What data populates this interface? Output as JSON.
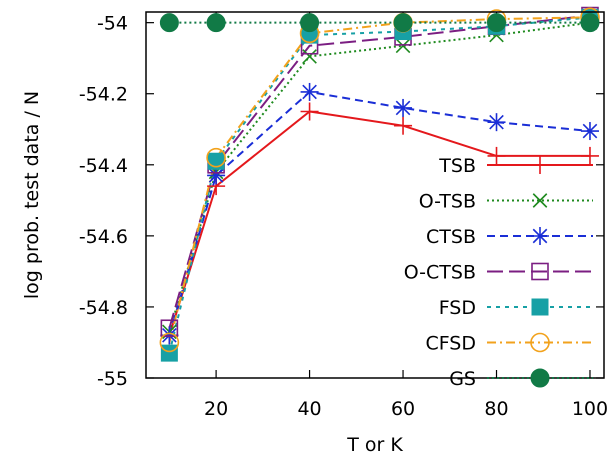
{
  "chart_data": {
    "type": "line",
    "xlabel": "T or K",
    "ylabel": "log prob. test data / N",
    "xlim": [
      5,
      103
    ],
    "ylim": [
      -55,
      -53.97
    ],
    "xticks": [
      20,
      40,
      60,
      80,
      100
    ],
    "yticks": [
      -55,
      -54.8,
      -54.6,
      -54.4,
      -54.2,
      -54
    ],
    "ytick_labels": [
      "-55",
      "-54.8",
      "-54.6",
      "-54.4",
      "-54.2",
      "-54"
    ],
    "x": [
      10,
      20,
      40,
      60,
      80,
      100
    ],
    "legend_position": "bottom-right",
    "series": [
      {
        "name": "TSB",
        "color": "#e4181c",
        "dash": "solid",
        "marker": "plus",
        "values": [
          -54.88,
          -54.46,
          -54.25,
          -54.29,
          -54.375,
          -54.375
        ]
      },
      {
        "name": "O-TSB",
        "color": "#1e8a1e",
        "dash": "dotted",
        "marker": "cross",
        "values": [
          -54.87,
          -54.42,
          -54.095,
          -54.065,
          -54.035,
          -54.0
        ]
      },
      {
        "name": "CTSB",
        "color": "#1a2ed6",
        "dash": "dashed",
        "marker": "star",
        "values": [
          -54.88,
          -54.43,
          -54.195,
          -54.24,
          -54.28,
          -54.305
        ]
      },
      {
        "name": "O-CTSB",
        "color": "#7b1e82",
        "dash": "longdash",
        "marker": "open-square",
        "values": [
          -54.86,
          -54.4,
          -54.065,
          -54.04,
          -54.01,
          -53.98
        ]
      },
      {
        "name": "FSD",
        "color": "#17a0a5",
        "dash": "shortdash",
        "marker": "filled-square",
        "values": [
          -54.93,
          -54.39,
          -54.035,
          -54.025,
          -54.01,
          -53.985
        ]
      },
      {
        "name": "CFSD",
        "color": "#f2a21c",
        "dash": "dashdot",
        "marker": "open-circle",
        "values": [
          -54.9,
          -54.38,
          -54.03,
          -54.0,
          -53.99,
          -53.985
        ]
      },
      {
        "name": "GS",
        "color": "#117a46",
        "dash": "dotted",
        "marker": "filled-circle",
        "values": [
          -54.0,
          -54.0,
          -54.0,
          -54.0,
          -54.0,
          -54.0
        ]
      }
    ]
  }
}
